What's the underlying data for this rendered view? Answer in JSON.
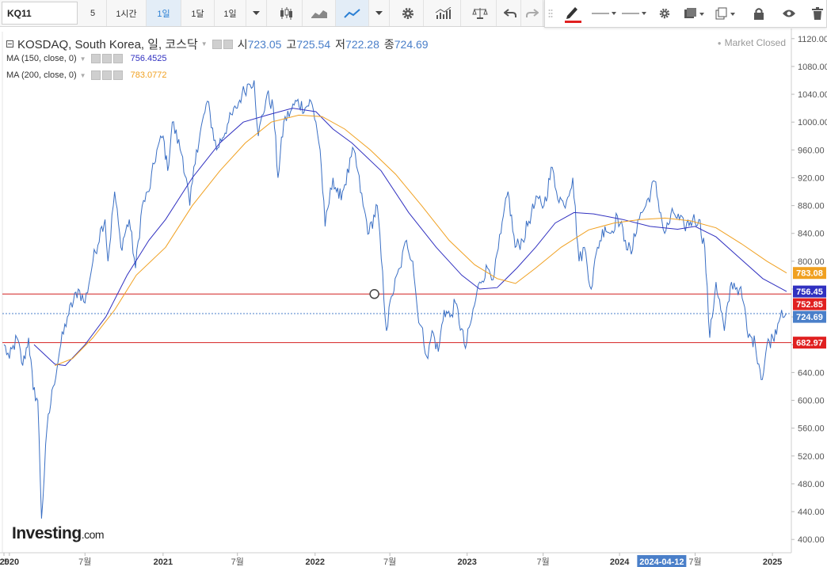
{
  "toolbar": {
    "symbol": "KQ11",
    "intervals": [
      "5",
      "1시간",
      "1일",
      "1달",
      "1일"
    ],
    "active_interval": "1일",
    "colors": {
      "active_bg": "#e3edf7",
      "pen_underline": "#e02020"
    }
  },
  "header": {
    "instrument": "KOSDAQ, South Korea, 일, 코스닥",
    "open_label": "시",
    "open": "723.05",
    "high_label": "고",
    "high": "725.54",
    "low_label": "저",
    "low": "722.28",
    "close_label": "종",
    "close": "724.69",
    "market_status": "Market Closed"
  },
  "indicators": [
    {
      "label": "MA (150, close, 0)",
      "value": "756.4525",
      "color": "#3030c0"
    },
    {
      "label": "MA (200, close, 0)",
      "value": "783.0772",
      "color": "#f0a020"
    }
  ],
  "logo": {
    "main": "Investing",
    "suffix": ".com"
  },
  "crosshair_date": "2024-04-12",
  "chart_data": {
    "type": "line",
    "ylim": [
      390,
      1130
    ],
    "y_ticks": [
      400,
      440,
      480,
      520,
      560,
      600,
      640,
      680,
      720,
      760,
      800,
      840,
      880,
      920,
      960,
      1000,
      1040,
      1080,
      1120
    ],
    "x_range": [
      "2019-12-20",
      "2025-02-05"
    ],
    "x_ticks": [
      {
        "label": "5",
        "date": "2019-12-20",
        "bold": false
      },
      {
        "label": "2020",
        "date": "2020-01-02",
        "bold": true
      },
      {
        "label": "7월",
        "date": "2020-07-01",
        "bold": false
      },
      {
        "label": "2021",
        "date": "2021-01-04",
        "bold": true
      },
      {
        "label": "7월",
        "date": "2021-07-01",
        "bold": false
      },
      {
        "label": "2022",
        "date": "2022-01-03",
        "bold": true
      },
      {
        "label": "7월",
        "date": "2022-07-01",
        "bold": false
      },
      {
        "label": "2023",
        "date": "2023-01-02",
        "bold": true
      },
      {
        "label": "7월",
        "date": "2023-07-03",
        "bold": false
      },
      {
        "label": "2024",
        "date": "2024-01-02",
        "bold": true
      },
      {
        "label": "7월",
        "date": "2024-07-01",
        "bold": false
      },
      {
        "label": "2025",
        "date": "2025-01-02",
        "bold": true
      }
    ],
    "series": [
      {
        "name": "KOSDAQ",
        "color": "#3a6fc4",
        "points": [
          [
            "2019-12-20",
            680
          ],
          [
            "2020-01-02",
            660
          ],
          [
            "2020-01-20",
            690
          ],
          [
            "2020-02-03",
            650
          ],
          [
            "2020-02-17",
            690
          ],
          [
            "2020-02-28",
            615
          ],
          [
            "2020-03-10",
            600
          ],
          [
            "2020-03-19",
            430
          ],
          [
            "2020-04-01",
            560
          ],
          [
            "2020-04-16",
            620
          ],
          [
            "2020-05-04",
            680
          ],
          [
            "2020-05-20",
            720
          ],
          [
            "2020-06-15",
            760
          ],
          [
            "2020-07-01",
            740
          ],
          [
            "2020-07-20",
            800
          ],
          [
            "2020-08-10",
            850
          ],
          [
            "2020-08-18",
            860
          ],
          [
            "2020-08-25",
            800
          ],
          [
            "2020-09-10",
            900
          ],
          [
            "2020-09-25",
            820
          ],
          [
            "2020-10-15",
            860
          ],
          [
            "2020-10-30",
            790
          ],
          [
            "2020-11-15",
            880
          ],
          [
            "2020-12-01",
            900
          ],
          [
            "2020-12-20",
            960
          ],
          [
            "2021-01-04",
            980
          ],
          [
            "2021-01-15",
            930
          ],
          [
            "2021-01-26",
            1000
          ],
          [
            "2021-02-20",
            950
          ],
          [
            "2021-03-09",
            880
          ],
          [
            "2021-03-25",
            960
          ],
          [
            "2021-04-20",
            1030
          ],
          [
            "2021-05-12",
            960
          ],
          [
            "2021-06-10",
            1000
          ],
          [
            "2021-06-28",
            1020
          ],
          [
            "2021-07-12",
            1040
          ],
          [
            "2021-07-28",
            1055
          ],
          [
            "2021-08-10",
            1060
          ],
          [
            "2021-08-20",
            980
          ],
          [
            "2021-09-10",
            1040
          ],
          [
            "2021-09-25",
            1020
          ],
          [
            "2021-10-06",
            920
          ],
          [
            "2021-10-20",
            1000
          ],
          [
            "2021-11-05",
            1015
          ],
          [
            "2021-11-20",
            1030
          ],
          [
            "2021-12-10",
            1020
          ],
          [
            "2021-12-24",
            1030
          ],
          [
            "2022-01-05",
            1000
          ],
          [
            "2022-01-15",
            960
          ],
          [
            "2022-01-27",
            850
          ],
          [
            "2022-02-15",
            920
          ],
          [
            "2022-03-01",
            890
          ],
          [
            "2022-03-15",
            910
          ],
          [
            "2022-04-06",
            960
          ],
          [
            "2022-04-28",
            880
          ],
          [
            "2022-05-12",
            840
          ],
          [
            "2022-06-01",
            880
          ],
          [
            "2022-06-23",
            700
          ],
          [
            "2022-07-05",
            750
          ],
          [
            "2022-07-25",
            790
          ],
          [
            "2022-08-10",
            830
          ],
          [
            "2022-08-25",
            800
          ],
          [
            "2022-09-05",
            730
          ],
          [
            "2022-09-30",
            660
          ],
          [
            "2022-10-10",
            700
          ],
          [
            "2022-10-25",
            670
          ],
          [
            "2022-11-08",
            730
          ],
          [
            "2022-11-22",
            720
          ],
          [
            "2022-12-05",
            740
          ],
          [
            "2022-12-29",
            675
          ],
          [
            "2023-01-10",
            710
          ],
          [
            "2023-02-01",
            770
          ],
          [
            "2023-02-20",
            790
          ],
          [
            "2023-03-08",
            780
          ],
          [
            "2023-03-24",
            840
          ],
          [
            "2023-04-10",
            900
          ],
          [
            "2023-04-27",
            820
          ],
          [
            "2023-05-15",
            830
          ],
          [
            "2023-06-05",
            870
          ],
          [
            "2023-06-22",
            890
          ],
          [
            "2023-07-05",
            880
          ],
          [
            "2023-07-25",
            935
          ],
          [
            "2023-08-04",
            900
          ],
          [
            "2023-08-22",
            880
          ],
          [
            "2023-09-12",
            920
          ],
          [
            "2023-09-27",
            800
          ],
          [
            "2023-10-10",
            820
          ],
          [
            "2023-10-26",
            760
          ],
          [
            "2023-11-10",
            820
          ],
          [
            "2023-11-28",
            850
          ],
          [
            "2023-12-12",
            840
          ],
          [
            "2023-12-28",
            865
          ],
          [
            "2024-01-16",
            830
          ],
          [
            "2024-01-30",
            810
          ],
          [
            "2024-02-15",
            860
          ],
          [
            "2024-03-05",
            880
          ],
          [
            "2024-03-26",
            915
          ],
          [
            "2024-04-12",
            860
          ],
          [
            "2024-04-19",
            840
          ],
          [
            "2024-05-10",
            870
          ],
          [
            "2024-06-05",
            850
          ],
          [
            "2024-06-25",
            860
          ],
          [
            "2024-07-10",
            860
          ],
          [
            "2024-07-24",
            820
          ],
          [
            "2024-08-05",
            690
          ],
          [
            "2024-08-20",
            770
          ],
          [
            "2024-09-09",
            700
          ],
          [
            "2024-09-26",
            770
          ],
          [
            "2024-10-15",
            760
          ],
          [
            "2024-10-25",
            740
          ],
          [
            "2024-11-05",
            690
          ],
          [
            "2024-11-14",
            690
          ],
          [
            "2024-11-22",
            680
          ],
          [
            "2024-12-09",
            630
          ],
          [
            "2024-12-20",
            680
          ],
          [
            "2025-01-03",
            690
          ],
          [
            "2025-01-15",
            710
          ],
          [
            "2025-01-24",
            730
          ],
          [
            "2025-02-05",
            725
          ]
        ]
      },
      {
        "name": "MA (150, close, 0)",
        "color": "#3030c0",
        "points": [
          [
            "2020-03-01",
            680
          ],
          [
            "2020-04-20",
            652
          ],
          [
            "2020-05-15",
            650
          ],
          [
            "2020-07-01",
            680
          ],
          [
            "2020-08-20",
            720
          ],
          [
            "2020-10-10",
            780
          ],
          [
            "2020-12-01",
            830
          ],
          [
            "2021-01-10",
            860
          ],
          [
            "2021-03-15",
            920
          ],
          [
            "2021-05-20",
            970
          ],
          [
            "2021-07-15",
            1000
          ],
          [
            "2021-09-10",
            1010
          ],
          [
            "2021-11-10",
            1020
          ],
          [
            "2022-01-05",
            1015
          ],
          [
            "2022-02-15",
            990
          ],
          [
            "2022-04-01",
            970
          ],
          [
            "2022-06-10",
            930
          ],
          [
            "2022-08-15",
            870
          ],
          [
            "2022-10-20",
            820
          ],
          [
            "2022-12-20",
            780
          ],
          [
            "2023-02-01",
            760
          ],
          [
            "2023-03-15",
            762
          ],
          [
            "2023-05-01",
            790
          ],
          [
            "2023-06-15",
            820
          ],
          [
            "2023-08-01",
            855
          ],
          [
            "2023-09-15",
            870
          ],
          [
            "2023-11-01",
            868
          ],
          [
            "2024-01-10",
            860
          ],
          [
            "2024-03-15",
            850
          ],
          [
            "2024-05-20",
            846
          ],
          [
            "2024-07-01",
            850
          ],
          [
            "2024-08-20",
            835
          ],
          [
            "2024-10-15",
            805
          ],
          [
            "2024-12-10",
            775
          ],
          [
            "2025-02-05",
            756.45
          ]
        ]
      },
      {
        "name": "MA (200, close, 0)",
        "color": "#f0a020",
        "points": [
          [
            "2020-04-20",
            650
          ],
          [
            "2020-06-01",
            660
          ],
          [
            "2020-07-20",
            690
          ],
          [
            "2020-09-10",
            730
          ],
          [
            "2020-11-01",
            780
          ],
          [
            "2021-01-10",
            820
          ],
          [
            "2021-03-15",
            880
          ],
          [
            "2021-05-20",
            930
          ],
          [
            "2021-07-20",
            970
          ],
          [
            "2021-09-20",
            1000
          ],
          [
            "2021-11-25",
            1010
          ],
          [
            "2022-01-20",
            1008
          ],
          [
            "2022-03-15",
            990
          ],
          [
            "2022-05-15",
            960
          ],
          [
            "2022-07-15",
            925
          ],
          [
            "2022-09-15",
            880
          ],
          [
            "2022-11-20",
            830
          ],
          [
            "2023-01-20",
            795
          ],
          [
            "2023-03-15",
            775
          ],
          [
            "2023-04-28",
            768
          ],
          [
            "2023-06-15",
            790
          ],
          [
            "2023-08-15",
            820
          ],
          [
            "2023-10-20",
            845
          ],
          [
            "2023-12-20",
            855
          ],
          [
            "2024-02-20",
            860
          ],
          [
            "2024-04-20",
            862
          ],
          [
            "2024-06-20",
            858
          ],
          [
            "2024-08-20",
            848
          ],
          [
            "2024-10-20",
            825
          ],
          [
            "2024-12-20",
            800
          ],
          [
            "2025-02-05",
            783.08
          ]
        ]
      }
    ],
    "hlines": [
      {
        "value": 752.85,
        "label": "752.85",
        "color": "#d42020",
        "style": "solid"
      },
      {
        "value": 682.97,
        "label": "682.97",
        "color": "#d42020",
        "style": "solid"
      },
      {
        "value": 724.69,
        "label": "724.69",
        "color": "#4a7fc9",
        "style": "dotted"
      }
    ],
    "price_tags": [
      {
        "value": 783.08,
        "label": "783.08",
        "color": "#f0a020"
      },
      {
        "value": 756.45,
        "label": "756.45",
        "color": "#3030c0"
      },
      {
        "value": 752.85,
        "label": "752.85",
        "color": "#e02020"
      },
      {
        "value": 724.69,
        "label": "724.69",
        "color": "#4a7fc9"
      },
      {
        "value": 682.97,
        "label": "682.97",
        "color": "#e02020"
      }
    ],
    "annotation": {
      "type": "circle",
      "date": "2022-05-25",
      "value": 752.85
    },
    "grid": false,
    "legend": "top-left"
  }
}
